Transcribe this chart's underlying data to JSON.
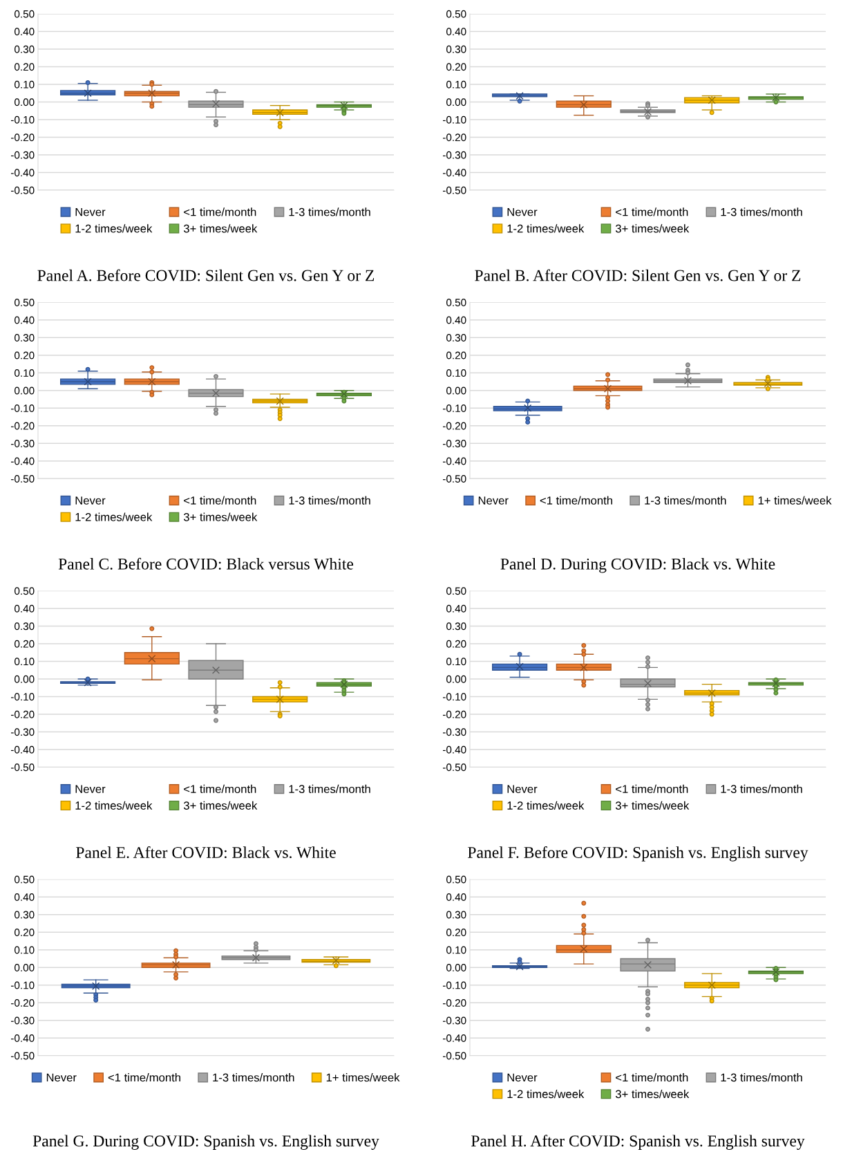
{
  "chart_data": [
    {
      "type": "box",
      "title": "Panel A. Before COVID: Silent Gen vs. Gen Y or Z",
      "categories": [
        null
      ],
      "ylim": [
        -0.5,
        0.5
      ],
      "yticks": [
        {
          "value": 0.5,
          "label": "0.50"
        },
        {
          "value": 0.4,
          "label": "0.40"
        },
        {
          "value": 0.3,
          "label": "0.30"
        },
        {
          "value": 0.2,
          "label": "0.20"
        },
        {
          "value": 0.1,
          "label": "0.10"
        },
        {
          "value": 0,
          "label": "0.00"
        },
        {
          "value": -0.1,
          "label": "-0.10"
        },
        {
          "value": -0.2,
          "label": "-0.20"
        },
        {
          "value": -0.3,
          "label": "-0.30"
        },
        {
          "value": -0.4,
          "label": "-0.40"
        },
        {
          "value": -0.5,
          "label": "-0.50"
        }
      ],
      "grid": "y",
      "legend": "bottom",
      "series": [
        {
          "name": "Never",
          "color": "#4472c4",
          "boxes": [
            {
              "low": 0.01,
              "q1": 0.04,
              "median": 0.05,
              "q3": 0.065,
              "high": 0.105,
              "mean": 0.05,
              "outliers": [
                0.11
              ]
            }
          ]
        },
        {
          "name": "<1 time/month",
          "color": "#ed7d31",
          "boxes": [
            {
              "low": 0.0,
              "q1": 0.035,
              "median": 0.05,
              "q3": 0.06,
              "high": 0.095,
              "mean": 0.05,
              "outliers": [
                0.11,
                0.1,
                -0.01,
                -0.025
              ]
            }
          ]
        },
        {
          "name": "1-3 times/month",
          "color": "#a5a5a5",
          "boxes": [
            {
              "low": -0.085,
              "q1": -0.03,
              "median": -0.015,
              "q3": 0.005,
              "high": 0.055,
              "mean": -0.01,
              "outliers": [
                0.06,
                -0.11,
                -0.13
              ]
            }
          ]
        },
        {
          "name": "1-2 times/week",
          "color": "#ffc000",
          "boxes": [
            {
              "low": -0.1,
              "q1": -0.07,
              "median": -0.06,
              "q3": -0.045,
              "high": -0.02,
              "mean": -0.06,
              "outliers": [
                -0.12,
                -0.14
              ]
            }
          ]
        },
        {
          "name": "3+ times/week",
          "color": "#70ad47",
          "boxes": [
            {
              "low": -0.045,
              "q1": -0.03,
              "median": -0.02,
              "q3": -0.015,
              "high": 0.0,
              "mean": -0.02,
              "outliers": [
                -0.04,
                -0.055,
                -0.065
              ]
            }
          ]
        }
      ]
    },
    {
      "type": "box",
      "title": "Panel B. After COVID: Silent Gen vs. Gen Y or Z",
      "categories": [
        null
      ],
      "ylim": [
        -0.5,
        0.5
      ],
      "yticks": [
        {
          "value": 0.5,
          "label": "0.50"
        },
        {
          "value": 0.4,
          "label": "0.40"
        },
        {
          "value": 0.3,
          "label": "0.30"
        },
        {
          "value": 0.2,
          "label": "0.20"
        },
        {
          "value": 0.1,
          "label": "0.10"
        },
        {
          "value": 0,
          "label": "0.00"
        },
        {
          "value": -0.1,
          "label": "-0.10"
        },
        {
          "value": -0.2,
          "label": "-0.20"
        },
        {
          "value": -0.3,
          "label": "-0.30"
        },
        {
          "value": -0.4,
          "label": "-0.40"
        },
        {
          "value": -0.5,
          "label": "-0.50"
        }
      ],
      "grid": "y",
      "legend": "bottom",
      "series": [
        {
          "name": "Never",
          "color": "#4472c4",
          "boxes": [
            {
              "low": 0.01,
              "q1": 0.03,
              "median": 0.035,
              "q3": 0.045,
              "high": 0.045,
              "mean": 0.035,
              "outliers": [
                0.005
              ]
            }
          ]
        },
        {
          "name": "<1 time/month",
          "color": "#ed7d31",
          "boxes": [
            {
              "low": -0.075,
              "q1": -0.03,
              "median": -0.015,
              "q3": 0.005,
              "high": 0.035,
              "mean": -0.015
            }
          ]
        },
        {
          "name": "1-3 times/month",
          "color": "#a5a5a5",
          "boxes": [
            {
              "low": -0.08,
              "q1": -0.06,
              "median": -0.055,
              "q3": -0.045,
              "high": -0.03,
              "mean": -0.055,
              "outliers": [
                -0.01,
                -0.02,
                -0.085
              ]
            }
          ]
        },
        {
          "name": "1-2 times/week",
          "color": "#ffc000",
          "boxes": [
            {
              "low": -0.045,
              "q1": -0.005,
              "median": 0.01,
              "q3": 0.025,
              "high": 0.035,
              "mean": 0.01,
              "outliers": [
                -0.06
              ]
            }
          ]
        },
        {
          "name": "3+ times/week",
          "color": "#70ad47",
          "boxes": [
            {
              "low": 0.0,
              "q1": 0.015,
              "median": 0.025,
              "q3": 0.03,
              "high": 0.045,
              "mean": 0.025,
              "outliers": [
                0.0
              ]
            }
          ]
        }
      ]
    },
    {
      "type": "box",
      "title": "Panel C. Before COVID: Black versus White",
      "categories": [
        null
      ],
      "ylim": [
        -0.5,
        0.5
      ],
      "yticks": [
        {
          "value": 0.5,
          "label": "0.50"
        },
        {
          "value": 0.4,
          "label": "0.40"
        },
        {
          "value": 0.3,
          "label": "0.30"
        },
        {
          "value": 0.2,
          "label": "0.20"
        },
        {
          "value": 0.1,
          "label": "0.10"
        },
        {
          "value": 0,
          "label": "0.00"
        },
        {
          "value": -0.1,
          "label": "-0.10"
        },
        {
          "value": -0.2,
          "label": "-0.20"
        },
        {
          "value": -0.3,
          "label": "-0.30"
        },
        {
          "value": -0.4,
          "label": "-0.40"
        },
        {
          "value": -0.5,
          "label": "-0.50"
        }
      ],
      "grid": "y",
      "legend": "bottom",
      "series": [
        {
          "name": "Never",
          "color": "#4472c4",
          "boxes": [
            {
              "low": 0.01,
              "q1": 0.035,
              "median": 0.05,
              "q3": 0.065,
              "high": 0.11,
              "mean": 0.05,
              "outliers": [
                0.12
              ]
            }
          ]
        },
        {
          "name": "<1 time/month",
          "color": "#ed7d31",
          "boxes": [
            {
              "low": -0.005,
              "q1": 0.035,
              "median": 0.05,
              "q3": 0.065,
              "high": 0.105,
              "mean": 0.05,
              "outliers": [
                0.13,
                0.105,
                -0.01,
                -0.025
              ]
            }
          ]
        },
        {
          "name": "1-3 times/month",
          "color": "#a5a5a5",
          "boxes": [
            {
              "low": -0.09,
              "q1": -0.035,
              "median": -0.015,
              "q3": 0.005,
              "high": 0.065,
              "mean": -0.015,
              "outliers": [
                0.08,
                -0.11,
                -0.13
              ]
            }
          ]
        },
        {
          "name": "1-2 times/week",
          "color": "#ffc000",
          "boxes": [
            {
              "low": -0.095,
              "q1": -0.07,
              "median": -0.06,
              "q3": -0.05,
              "high": -0.02,
              "mean": -0.06,
              "outliers": [
                -0.11,
                -0.125,
                -0.14,
                -0.16
              ]
            }
          ]
        },
        {
          "name": "3+ times/week",
          "color": "#70ad47",
          "boxes": [
            {
              "low": -0.045,
              "q1": -0.03,
              "median": -0.02,
              "q3": -0.015,
              "high": 0.0,
              "mean": -0.02,
              "outliers": [
                -0.01,
                -0.03,
                -0.045,
                -0.06
              ]
            }
          ]
        }
      ]
    },
    {
      "type": "box",
      "title": "Panel D. During COVID: Black vs. White",
      "categories": [
        null
      ],
      "ylim": [
        -0.5,
        0.5
      ],
      "yticks": [
        {
          "value": 0.5,
          "label": "0.50"
        },
        {
          "value": 0.4,
          "label": "0.40"
        },
        {
          "value": 0.3,
          "label": "0.30"
        },
        {
          "value": 0.2,
          "label": "0.20"
        },
        {
          "value": 0.1,
          "label": "0.10"
        },
        {
          "value": 0,
          "label": "0.00"
        },
        {
          "value": -0.1,
          "label": "-0.10"
        },
        {
          "value": -0.2,
          "label": "-0.20"
        },
        {
          "value": -0.3,
          "label": "-0.30"
        },
        {
          "value": -0.4,
          "label": "-0.40"
        },
        {
          "value": -0.5,
          "label": "-0.50"
        }
      ],
      "grid": "y",
      "legend": "bottom",
      "series": [
        {
          "name": "Never",
          "color": "#4472c4",
          "boxes": [
            {
              "low": -0.14,
              "q1": -0.115,
              "median": -0.105,
              "q3": -0.09,
              "high": -0.065,
              "mean": -0.1,
              "outliers": [
                -0.06,
                -0.16,
                -0.18
              ]
            }
          ]
        },
        {
          "name": "<1 time/month",
          "color": "#ed7d31",
          "boxes": [
            {
              "low": -0.03,
              "q1": 0.0,
              "median": 0.01,
              "q3": 0.025,
              "high": 0.055,
              "mean": 0.01,
              "outliers": [
                0.09,
                0.06,
                -0.04,
                -0.06,
                -0.08,
                -0.095
              ]
            }
          ]
        },
        {
          "name": "1-3 times/month",
          "color": "#a5a5a5",
          "boxes": [
            {
              "low": 0.02,
              "q1": 0.045,
              "median": 0.055,
              "q3": 0.065,
              "high": 0.095,
              "mean": 0.055,
              "outliers": [
                0.145,
                0.115,
                0.1
              ]
            }
          ]
        },
        {
          "name": "1+ times/week",
          "color": "#ffc000",
          "boxes": [
            {
              "low": 0.015,
              "q1": 0.03,
              "median": 0.035,
              "q3": 0.045,
              "high": 0.06,
              "mean": 0.04,
              "outliers": [
                0.075,
                0.065,
                0.01
              ]
            }
          ]
        }
      ]
    },
    {
      "type": "box",
      "title": "Panel E. After COVID: Black vs. White",
      "categories": [
        null
      ],
      "ylim": [
        -0.5,
        0.5
      ],
      "yticks": [
        {
          "value": 0.5,
          "label": "0.50"
        },
        {
          "value": 0.4,
          "label": "0.40"
        },
        {
          "value": 0.3,
          "label": "0.30"
        },
        {
          "value": 0.2,
          "label": "0.20"
        },
        {
          "value": 0.1,
          "label": "0.10"
        },
        {
          "value": 0,
          "label": "0.00"
        },
        {
          "value": -0.1,
          "label": "-0.10"
        },
        {
          "value": -0.2,
          "label": "-0.20"
        },
        {
          "value": -0.3,
          "label": "-0.30"
        },
        {
          "value": -0.4,
          "label": "-0.40"
        },
        {
          "value": -0.5,
          "label": "-0.50"
        }
      ],
      "grid": "y",
      "legend": "bottom",
      "series": [
        {
          "name": "Never",
          "color": "#4472c4",
          "boxes": [
            {
              "low": -0.035,
              "q1": -0.025,
              "median": -0.02,
              "q3": -0.015,
              "high": 0.0,
              "mean": -0.02,
              "outliers": [
                0.0
              ]
            }
          ]
        },
        {
          "name": "<1 time/month",
          "color": "#ed7d31",
          "boxes": [
            {
              "low": -0.005,
              "q1": 0.085,
              "median": 0.115,
              "q3": 0.15,
              "high": 0.24,
              "mean": 0.115,
              "outliers": [
                0.285
              ]
            }
          ]
        },
        {
          "name": "1-3 times/month",
          "color": "#a5a5a5",
          "boxes": [
            {
              "low": -0.15,
              "q1": 0.0,
              "median": 0.05,
              "q3": 0.105,
              "high": 0.2,
              "mean": 0.05,
              "outliers": [
                -0.16,
                -0.185,
                -0.235
              ]
            }
          ]
        },
        {
          "name": "1-2 times/week",
          "color": "#ffc000",
          "boxes": [
            {
              "low": -0.185,
              "q1": -0.13,
              "median": -0.115,
              "q3": -0.1,
              "high": -0.05,
              "mean": -0.115,
              "outliers": [
                -0.02,
                -0.045,
                -0.2,
                -0.21
              ]
            }
          ]
        },
        {
          "name": "3+ times/week",
          "color": "#70ad47",
          "boxes": [
            {
              "low": -0.075,
              "q1": -0.04,
              "median": -0.03,
              "q3": -0.02,
              "high": 0.0,
              "mean": -0.03,
              "outliers": [
                -0.01,
                -0.02,
                -0.05,
                -0.065,
                -0.085
              ]
            }
          ]
        }
      ]
    },
    {
      "type": "box",
      "title": "Panel F. Before COVID: Spanish vs. English survey",
      "categories": [
        null
      ],
      "ylim": [
        -0.5,
        0.5
      ],
      "yticks": [
        {
          "value": 0.5,
          "label": "0.50"
        },
        {
          "value": 0.4,
          "label": "0.40"
        },
        {
          "value": 0.3,
          "label": "0.30"
        },
        {
          "value": 0.2,
          "label": "0.20"
        },
        {
          "value": 0.1,
          "label": "0.10"
        },
        {
          "value": 0,
          "label": "0.00"
        },
        {
          "value": -0.1,
          "label": "-0.10"
        },
        {
          "value": -0.2,
          "label": "-0.20"
        },
        {
          "value": -0.3,
          "label": "-0.30"
        },
        {
          "value": -0.4,
          "label": "-0.40"
        },
        {
          "value": -0.5,
          "label": "-0.50"
        }
      ],
      "grid": "y",
      "legend": "bottom",
      "series": [
        {
          "name": "Never",
          "color": "#4472c4",
          "boxes": [
            {
              "low": 0.01,
              "q1": 0.05,
              "median": 0.065,
              "q3": 0.085,
              "high": 0.13,
              "mean": 0.07,
              "outliers": [
                0.14
              ]
            }
          ]
        },
        {
          "name": "<1 time/month",
          "color": "#ed7d31",
          "boxes": [
            {
              "low": -0.005,
              "q1": 0.05,
              "median": 0.065,
              "q3": 0.085,
              "high": 0.14,
              "mean": 0.065,
              "outliers": [
                0.19,
                0.16,
                0.14,
                -0.015,
                -0.035
              ]
            }
          ]
        },
        {
          "name": "1-3 times/month",
          "color": "#a5a5a5",
          "boxes": [
            {
              "low": -0.115,
              "q1": -0.045,
              "median": -0.03,
              "q3": 0.0,
              "high": 0.065,
              "mean": -0.025,
              "outliers": [
                0.12,
                0.095,
                0.07,
                -0.12,
                -0.145,
                -0.17
              ]
            }
          ]
        },
        {
          "name": "1-2 times/week",
          "color": "#ffc000",
          "boxes": [
            {
              "low": -0.13,
              "q1": -0.09,
              "median": -0.08,
              "q3": -0.065,
              "high": -0.03,
              "mean": -0.08,
              "outliers": [
                -0.14,
                -0.16,
                -0.18,
                -0.2
              ]
            }
          ]
        },
        {
          "name": "3+ times/week",
          "color": "#70ad47",
          "boxes": [
            {
              "low": -0.055,
              "q1": -0.035,
              "median": -0.025,
              "q3": -0.02,
              "high": 0.0,
              "mean": -0.025,
              "outliers": [
                -0.005,
                -0.04,
                -0.06,
                -0.08
              ]
            }
          ]
        }
      ]
    },
    {
      "type": "box",
      "title": "Panel G. During COVID: Spanish vs. English survey",
      "categories": [
        null
      ],
      "ylim": [
        -0.5,
        0.5
      ],
      "yticks": [
        {
          "value": 0.5,
          "label": "0.50"
        },
        {
          "value": 0.4,
          "label": "0.40"
        },
        {
          "value": 0.3,
          "label": "0.30"
        },
        {
          "value": 0.2,
          "label": "0.20"
        },
        {
          "value": 0.1,
          "label": "0.10"
        },
        {
          "value": 0,
          "label": "0.00"
        },
        {
          "value": -0.1,
          "label": "-0.10"
        },
        {
          "value": -0.2,
          "label": "-0.20"
        },
        {
          "value": -0.3,
          "label": "-0.30"
        },
        {
          "value": -0.4,
          "label": "-0.40"
        },
        {
          "value": -0.5,
          "label": "-0.50"
        }
      ],
      "grid": "y",
      "legend": "bottom",
      "series": [
        {
          "name": "Never",
          "color": "#4472c4",
          "boxes": [
            {
              "low": -0.145,
              "q1": -0.115,
              "median": -0.105,
              "q3": -0.095,
              "high": -0.07,
              "mean": -0.105,
              "outliers": [
                -0.155,
                -0.17,
                -0.185
              ]
            }
          ]
        },
        {
          "name": "<1 time/month",
          "color": "#ed7d31",
          "boxes": [
            {
              "low": -0.025,
              "q1": 0.0,
              "median": 0.015,
              "q3": 0.025,
              "high": 0.055,
              "mean": 0.015,
              "outliers": [
                0.095,
                0.075,
                0.06,
                -0.04,
                -0.06
              ]
            }
          ]
        },
        {
          "name": "1-3 times/month",
          "color": "#a5a5a5",
          "boxes": [
            {
              "low": 0.025,
              "q1": 0.045,
              "median": 0.055,
              "q3": 0.065,
              "high": 0.095,
              "mean": 0.055,
              "outliers": [
                0.135,
                0.115,
                0.1
              ]
            }
          ]
        },
        {
          "name": "1+ times/week",
          "color": "#ffc000",
          "boxes": [
            {
              "low": 0.015,
              "q1": 0.03,
              "median": 0.035,
              "q3": 0.045,
              "high": 0.06,
              "mean": 0.04,
              "outliers": [
                0.01
              ]
            }
          ]
        }
      ]
    },
    {
      "type": "box",
      "title": "Panel H. After COVID: Spanish vs. English survey",
      "categories": [
        null
      ],
      "ylim": [
        -0.5,
        0.5
      ],
      "yticks": [
        {
          "value": 0.5,
          "label": "0.50"
        },
        {
          "value": 0.4,
          "label": "0.40"
        },
        {
          "value": 0.3,
          "label": "0.30"
        },
        {
          "value": 0.2,
          "label": "0.20"
        },
        {
          "value": 0.1,
          "label": "0.10"
        },
        {
          "value": 0,
          "label": "0.00"
        },
        {
          "value": -0.1,
          "label": "-0.10"
        },
        {
          "value": -0.2,
          "label": "-0.20"
        },
        {
          "value": -0.3,
          "label": "-0.30"
        },
        {
          "value": -0.4,
          "label": "-0.40"
        },
        {
          "value": -0.5,
          "label": "-0.50"
        }
      ],
      "grid": "y",
      "legend": "bottom",
      "series": [
        {
          "name": "Never",
          "color": "#4472c4",
          "boxes": [
            {
              "low": -0.005,
              "q1": 0.0,
              "median": 0.005,
              "q3": 0.01,
              "high": 0.025,
              "mean": 0.005,
              "outliers": [
                0.045,
                0.03
              ]
            }
          ]
        },
        {
          "name": "<1 time/month",
          "color": "#ed7d31",
          "boxes": [
            {
              "low": 0.02,
              "q1": 0.085,
              "median": 0.1,
              "q3": 0.125,
              "high": 0.19,
              "mean": 0.105,
              "outliers": [
                0.365,
                0.29,
                0.24,
                0.215,
                0.195
              ]
            }
          ]
        },
        {
          "name": "1-3 times/month",
          "color": "#a5a5a5",
          "boxes": [
            {
              "low": -0.11,
              "q1": -0.02,
              "median": 0.02,
              "q3": 0.05,
              "high": 0.14,
              "mean": 0.015,
              "outliers": [
                0.155,
                -0.135,
                -0.15,
                -0.18,
                -0.2,
                -0.23,
                -0.27,
                -0.35
              ]
            }
          ]
        },
        {
          "name": "1-2 times/week",
          "color": "#ffc000",
          "boxes": [
            {
              "low": -0.165,
              "q1": -0.115,
              "median": -0.1,
              "q3": -0.085,
              "high": -0.035,
              "mean": -0.1,
              "outliers": [
                -0.175,
                -0.19
              ]
            }
          ]
        },
        {
          "name": "3+ times/week",
          "color": "#70ad47",
          "boxes": [
            {
              "low": -0.065,
              "q1": -0.035,
              "median": -0.025,
              "q3": -0.02,
              "high": 0.0,
              "mean": -0.025,
              "outliers": [
                -0.005,
                -0.02,
                -0.04,
                -0.055,
                -0.07
              ]
            }
          ]
        }
      ]
    }
  ]
}
